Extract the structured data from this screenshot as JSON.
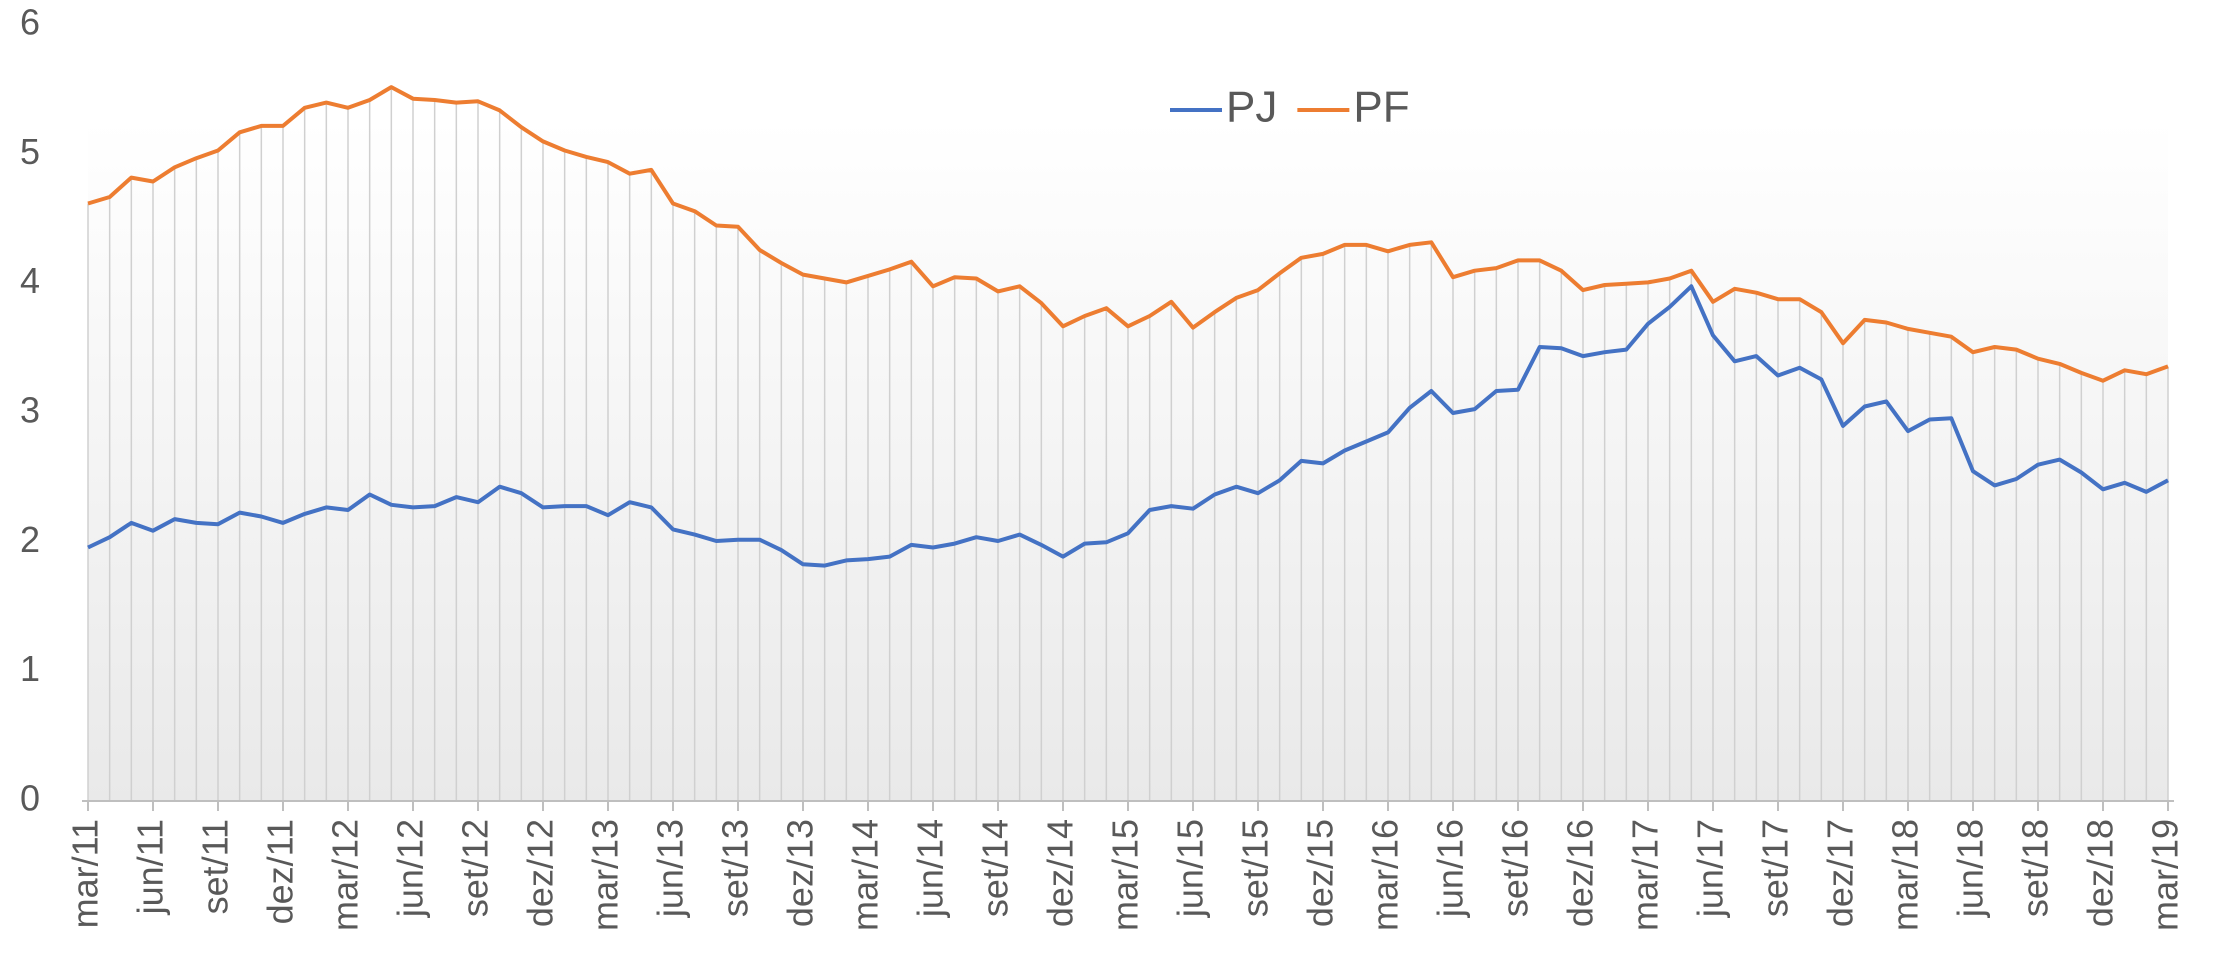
{
  "chart_data": {
    "type": "line",
    "categories": [
      "mar/11",
      null,
      null,
      "jun/11",
      null,
      null,
      "set/11",
      null,
      null,
      "dez/11",
      null,
      null,
      "mar/12",
      null,
      null,
      "jun/12",
      null,
      null,
      "set/12",
      null,
      null,
      "dez/12",
      null,
      null,
      "mar/13",
      null,
      null,
      "jun/13",
      null,
      null,
      "set/13",
      null,
      null,
      "dez/13",
      null,
      null,
      "mar/14",
      null,
      null,
      "jun/14",
      null,
      null,
      "set/14",
      null,
      null,
      "dez/14",
      null,
      null,
      "mar/15",
      null,
      null,
      "jun/15",
      null,
      null,
      "set/15",
      null,
      null,
      "dez/15",
      null,
      null,
      "mar/16",
      null,
      null,
      "jun/16",
      null,
      null,
      "set/16",
      null,
      null,
      "dez/16",
      null,
      null,
      "mar/17",
      null,
      null,
      "jun/17",
      null,
      null,
      "set/17",
      null,
      null,
      "dez/17",
      null,
      null,
      "mar/18",
      null,
      null,
      "jun/18",
      null,
      null,
      "set/18",
      null,
      null,
      "dez/18",
      null,
      null,
      "mar/19"
    ],
    "series": [
      {
        "name": "PJ",
        "color": "#4472c4",
        "values": [
          1.96,
          2.04,
          2.15,
          2.09,
          2.18,
          2.15,
          2.14,
          2.23,
          2.2,
          2.15,
          2.22,
          2.27,
          2.25,
          2.37,
          2.29,
          2.27,
          2.28,
          2.35,
          2.31,
          2.43,
          2.38,
          2.27,
          2.28,
          2.28,
          2.21,
          2.31,
          2.27,
          2.1,
          2.06,
          2.01,
          2.02,
          2.02,
          1.94,
          1.83,
          1.82,
          1.86,
          1.87,
          1.89,
          1.98,
          1.96,
          1.99,
          2.04,
          2.01,
          2.06,
          1.98,
          1.89,
          1.99,
          2.0,
          2.07,
          2.25,
          2.28,
          2.26,
          2.37,
          2.43,
          2.38,
          2.48,
          2.63,
          2.61,
          2.71,
          2.78,
          2.85,
          3.04,
          3.17,
          3.0,
          3.03,
          3.17,
          3.18,
          3.51,
          3.5,
          3.44,
          3.47,
          3.49,
          3.69,
          3.82,
          3.98,
          3.6,
          3.4,
          3.44,
          3.29,
          3.35,
          3.26,
          2.9,
          3.05,
          3.09,
          2.86,
          2.95,
          2.96,
          2.55,
          2.44,
          2.49,
          2.6,
          2.64,
          2.54,
          2.41,
          2.46,
          2.39,
          2.48
        ]
      },
      {
        "name": "PF",
        "color": "#ed7d31",
        "values": [
          4.62,
          4.67,
          4.82,
          4.79,
          4.9,
          4.97,
          5.03,
          5.17,
          5.22,
          5.22,
          5.36,
          5.4,
          5.36,
          5.42,
          5.52,
          5.43,
          5.42,
          5.4,
          5.41,
          5.34,
          5.21,
          5.1,
          5.03,
          4.98,
          4.94,
          4.85,
          4.88,
          4.62,
          4.56,
          4.45,
          4.44,
          4.26,
          4.16,
          4.07,
          4.04,
          4.01,
          4.06,
          4.11,
          4.17,
          3.98,
          4.05,
          4.04,
          3.94,
          3.98,
          3.85,
          3.67,
          3.75,
          3.81,
          3.67,
          3.75,
          3.86,
          3.66,
          3.78,
          3.89,
          3.95,
          4.08,
          4.2,
          4.23,
          4.3,
          4.3,
          4.25,
          4.3,
          4.32,
          4.05,
          4.1,
          4.12,
          4.18,
          4.18,
          4.1,
          3.95,
          3.99,
          4.0,
          4.01,
          4.04,
          4.1,
          3.86,
          3.96,
          3.93,
          3.88,
          3.88,
          3.78,
          3.54,
          3.72,
          3.7,
          3.65,
          3.62,
          3.59,
          3.47,
          3.51,
          3.49,
          3.42,
          3.38,
          3.31,
          3.25,
          3.33,
          3.3,
          3.36
        ]
      }
    ],
    "ylim": [
      0,
      6
    ],
    "yticks": [
      0,
      1,
      2,
      3,
      4,
      5,
      6
    ],
    "drop_lines": true,
    "legend": "top"
  }
}
